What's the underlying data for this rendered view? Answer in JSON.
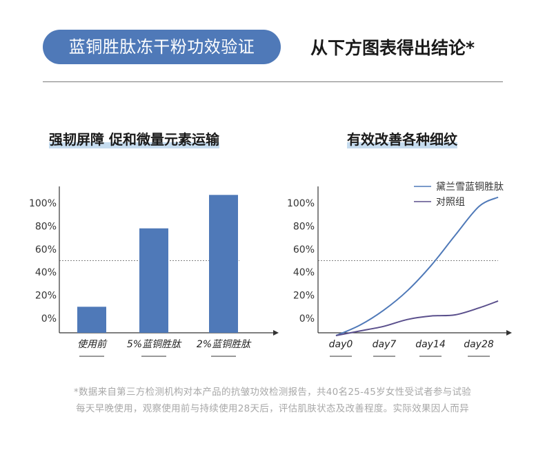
{
  "header": {
    "pill_title": "蓝铜胜肽冻干粉功效验证",
    "conclusion": "从下方图表得出结论*"
  },
  "colors": {
    "pill": "#4f79b8",
    "bar": "#4f79b8",
    "line_product": "#4f79b8",
    "line_control": "#5a4f8c",
    "highlight": "#c6dcef"
  },
  "chart_data": [
    {
      "type": "bar",
      "title": "强韧屏障 促和微量元素运输",
      "categories": [
        "使用前",
        "5%蓝铜胜肽",
        "2%蓝铜胜肽"
      ],
      "values": [
        10,
        78,
        107
      ],
      "yticks": [
        "100%",
        "80%",
        "60%",
        "40%",
        "20%",
        "0%"
      ],
      "ytick_values": [
        100,
        80,
        60,
        40,
        20,
        0
      ],
      "ylim": [
        -15,
        120
      ],
      "reference_line": 50,
      "grid": false
    },
    {
      "type": "line",
      "title": "有效改善各种细纹",
      "categories": [
        "day0",
        "day7",
        "day14",
        "day28"
      ],
      "yticks": [
        "100%",
        "80%",
        "60%",
        "40%",
        "20%",
        "0%"
      ],
      "ytick_values": [
        100,
        80,
        60,
        40,
        20,
        0
      ],
      "ylim": [
        -15,
        120
      ],
      "reference_line": 50,
      "legend_position": "top-right",
      "series": [
        {
          "name": "黛兰雪蓝铜胜肽",
          "x": [
            0,
            0.5,
            1,
            1.5,
            2,
            2.5,
            3,
            3.4
          ],
          "y": [
            -15,
            -6,
            7,
            24,
            46,
            72,
            97,
            105
          ]
        },
        {
          "name": "对照组",
          "x": [
            0,
            0.5,
            1,
            1.5,
            2,
            2.5,
            3,
            3.4
          ],
          "y": [
            -15,
            -11,
            -7,
            -1,
            2,
            3,
            9,
            15
          ]
        }
      ],
      "grid": false
    }
  ],
  "footnote": {
    "line1": "*数据来自第三方检测机构对本产品的抗皱功效检测报告，共40名25-45岁女性受试者参与试验",
    "line2": "每天早晚使用，观察使用前与持续使用28天后，评估肌肤状态及改善程度。实际效果因人而异"
  }
}
